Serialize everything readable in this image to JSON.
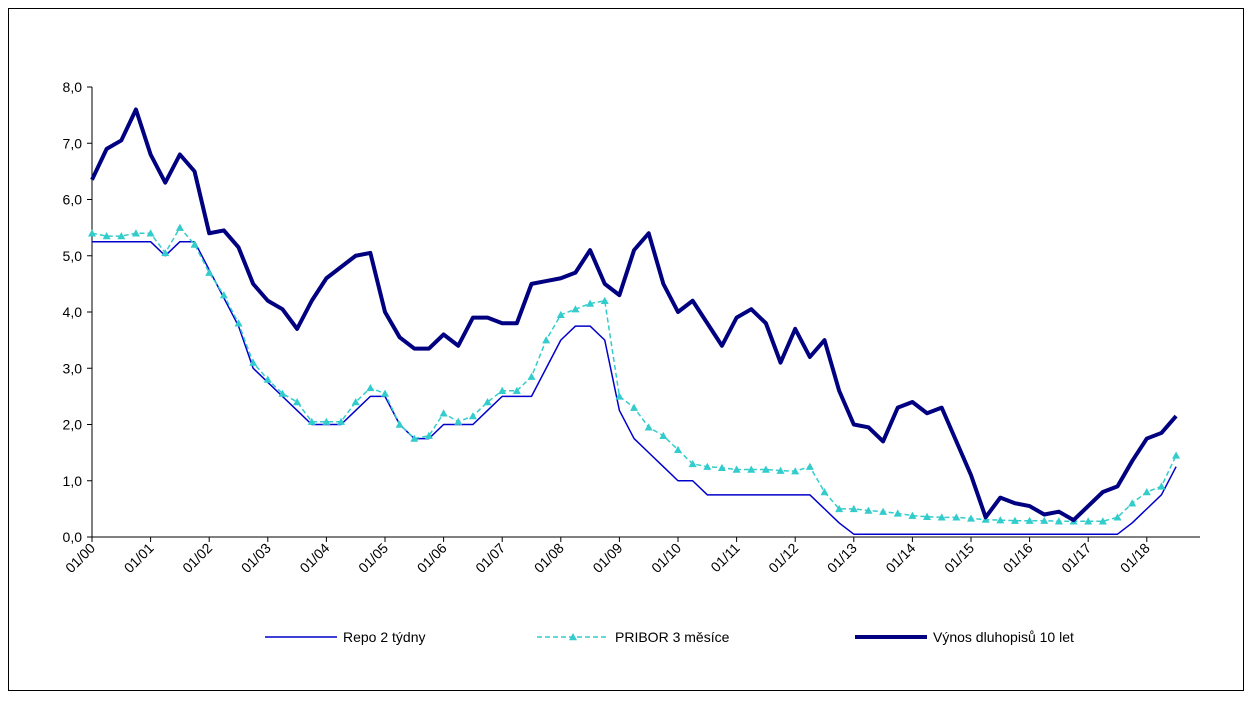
{
  "chart_data": {
    "type": "line",
    "categories": [
      "01/00",
      null,
      null,
      null,
      "01/01",
      null,
      null,
      null,
      "01/02",
      null,
      null,
      null,
      "01/03",
      null,
      null,
      null,
      "01/04",
      null,
      null,
      null,
      "01/05",
      null,
      null,
      null,
      "01/06",
      null,
      null,
      null,
      "01/07",
      null,
      null,
      null,
      "01/08",
      null,
      null,
      null,
      "01/09",
      null,
      null,
      null,
      "01/10",
      null,
      null,
      null,
      "01/11",
      null,
      null,
      null,
      "01/12",
      null,
      null,
      null,
      "01/13",
      null,
      null,
      null,
      "01/14",
      null,
      null,
      null,
      "01/15",
      null,
      null,
      null,
      "01/16",
      null,
      null,
      null,
      "01/17",
      null,
      null,
      null,
      "01/18",
      null,
      null
    ],
    "series": [
      {
        "name": "Repo 2 týdny",
        "color": "#0000cc",
        "style": "solid",
        "values": [
          5.25,
          5.25,
          5.25,
          5.25,
          5.25,
          5.0,
          5.25,
          5.25,
          4.75,
          4.25,
          3.75,
          3.0,
          2.75,
          2.5,
          2.25,
          2.0,
          2.0,
          2.0,
          2.25,
          2.5,
          2.5,
          2.0,
          1.75,
          1.75,
          2.0,
          2.0,
          2.0,
          2.25,
          2.5,
          2.5,
          2.5,
          3.0,
          3.5,
          3.75,
          3.75,
          3.5,
          2.25,
          1.75,
          1.5,
          1.25,
          1.0,
          1.0,
          0.75,
          0.75,
          0.75,
          0.75,
          0.75,
          0.75,
          0.75,
          0.75,
          0.5,
          0.25,
          0.05,
          0.05,
          0.05,
          0.05,
          0.05,
          0.05,
          0.05,
          0.05,
          0.05,
          0.05,
          0.05,
          0.05,
          0.05,
          0.05,
          0.05,
          0.05,
          0.05,
          0.05,
          0.05,
          0.25,
          0.5,
          0.75,
          1.25
        ]
      },
      {
        "name": "PRIBOR 3 měsíce",
        "color": "#33cccc",
        "style": "dashed",
        "marker": "triangle",
        "values": [
          5.4,
          5.35,
          5.35,
          5.4,
          5.4,
          5.05,
          5.5,
          5.2,
          4.7,
          4.3,
          3.8,
          3.1,
          2.8,
          2.55,
          2.4,
          2.05,
          2.05,
          2.05,
          2.4,
          2.65,
          2.55,
          2.0,
          1.75,
          1.8,
          2.2,
          2.05,
          2.15,
          2.4,
          2.6,
          2.6,
          2.85,
          3.5,
          3.95,
          4.05,
          4.15,
          4.2,
          2.5,
          2.3,
          1.95,
          1.8,
          1.55,
          1.3,
          1.25,
          1.23,
          1.2,
          1.2,
          1.2,
          1.18,
          1.17,
          1.25,
          0.8,
          0.5,
          0.5,
          0.47,
          0.45,
          0.42,
          0.38,
          0.36,
          0.35,
          0.35,
          0.33,
          0.31,
          0.3,
          0.29,
          0.29,
          0.29,
          0.28,
          0.28,
          0.28,
          0.28,
          0.35,
          0.6,
          0.8,
          0.9,
          1.45
        ]
      },
      {
        "name": "Výnos dluhopisů 10 let",
        "color": "#000080",
        "style": "thick",
        "values": [
          6.35,
          6.9,
          7.05,
          7.6,
          6.8,
          6.3,
          6.8,
          6.5,
          5.4,
          5.45,
          5.15,
          4.5,
          4.2,
          4.05,
          3.7,
          4.2,
          4.6,
          4.8,
          5.0,
          5.05,
          4.0,
          3.55,
          3.35,
          3.35,
          3.6,
          3.4,
          3.9,
          3.9,
          3.8,
          3.8,
          4.5,
          4.55,
          4.6,
          4.7,
          5.1,
          4.5,
          4.3,
          5.1,
          5.4,
          4.5,
          4.0,
          4.2,
          3.8,
          3.4,
          3.9,
          4.05,
          3.8,
          3.1,
          3.7,
          3.2,
          3.5,
          2.6,
          2.0,
          1.95,
          1.7,
          2.3,
          2.4,
          2.2,
          2.3,
          1.7,
          1.1,
          0.35,
          0.7,
          0.6,
          0.55,
          0.4,
          0.45,
          0.3,
          0.55,
          0.8,
          0.9,
          1.35,
          1.75,
          1.85,
          2.15
        ]
      }
    ],
    "ylim": [
      0,
      8
    ],
    "yticks": [
      {
        "value": 0,
        "label": "0,0"
      },
      {
        "value": 1,
        "label": "1,0"
      },
      {
        "value": 2,
        "label": "2,0"
      },
      {
        "value": 3,
        "label": "3,0"
      },
      {
        "value": 4,
        "label": "4,0"
      },
      {
        "value": 5,
        "label": "5,0"
      },
      {
        "value": 6,
        "label": "6,0"
      },
      {
        "value": 7,
        "label": "7,0"
      },
      {
        "value": 8,
        "label": "8,0"
      }
    ],
    "grid": false,
    "legend": "bottom"
  }
}
